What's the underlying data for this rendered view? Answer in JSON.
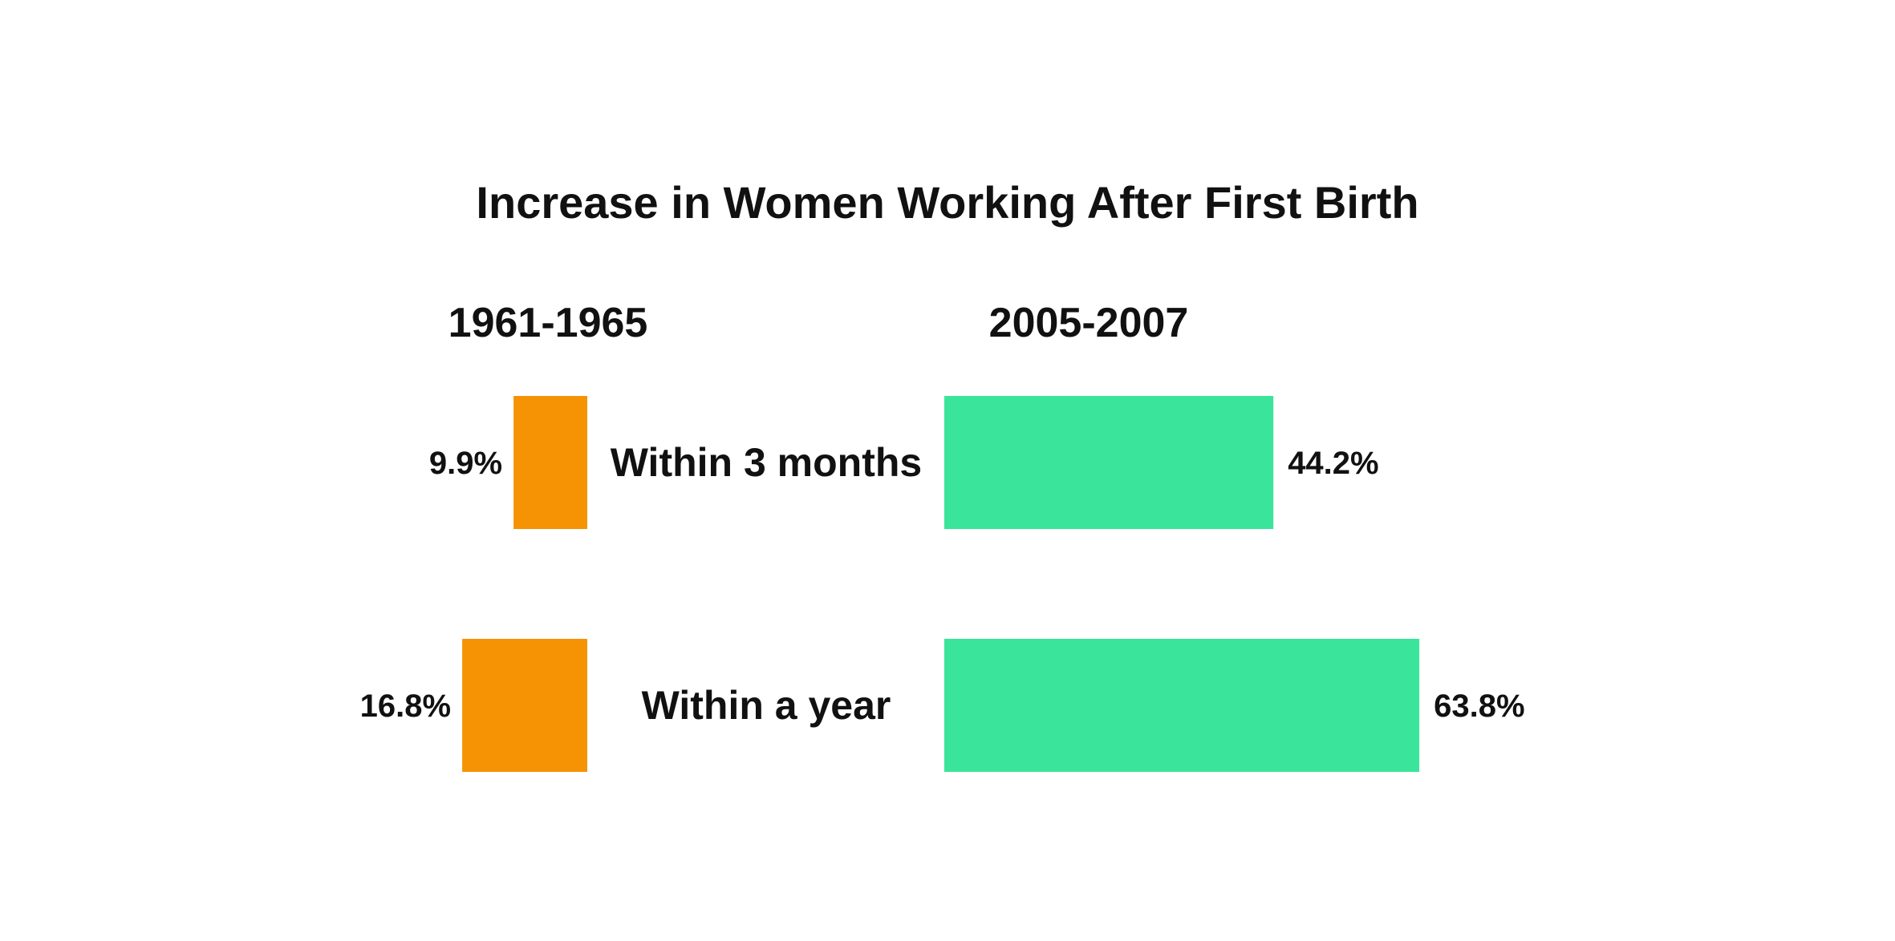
{
  "chart_data": {
    "type": "bar",
    "title": "Increase in Women Working After First Birth",
    "categories": [
      "Within 3 months",
      "Within a year"
    ],
    "series": [
      {
        "name": "1961-1965",
        "values": [
          9.9,
          16.8
        ],
        "labels": [
          "9.9%",
          "16.8%"
        ],
        "color": "#F59304"
      },
      {
        "name": "2005-2007",
        "values": [
          44.2,
          63.8
        ],
        "labels": [
          "44.2%",
          "63.8%"
        ],
        "color": "#3BE49B"
      }
    ],
    "unit": "%",
    "grid": false,
    "legend": "none",
    "orientation": "horizontal, back-to-back"
  }
}
